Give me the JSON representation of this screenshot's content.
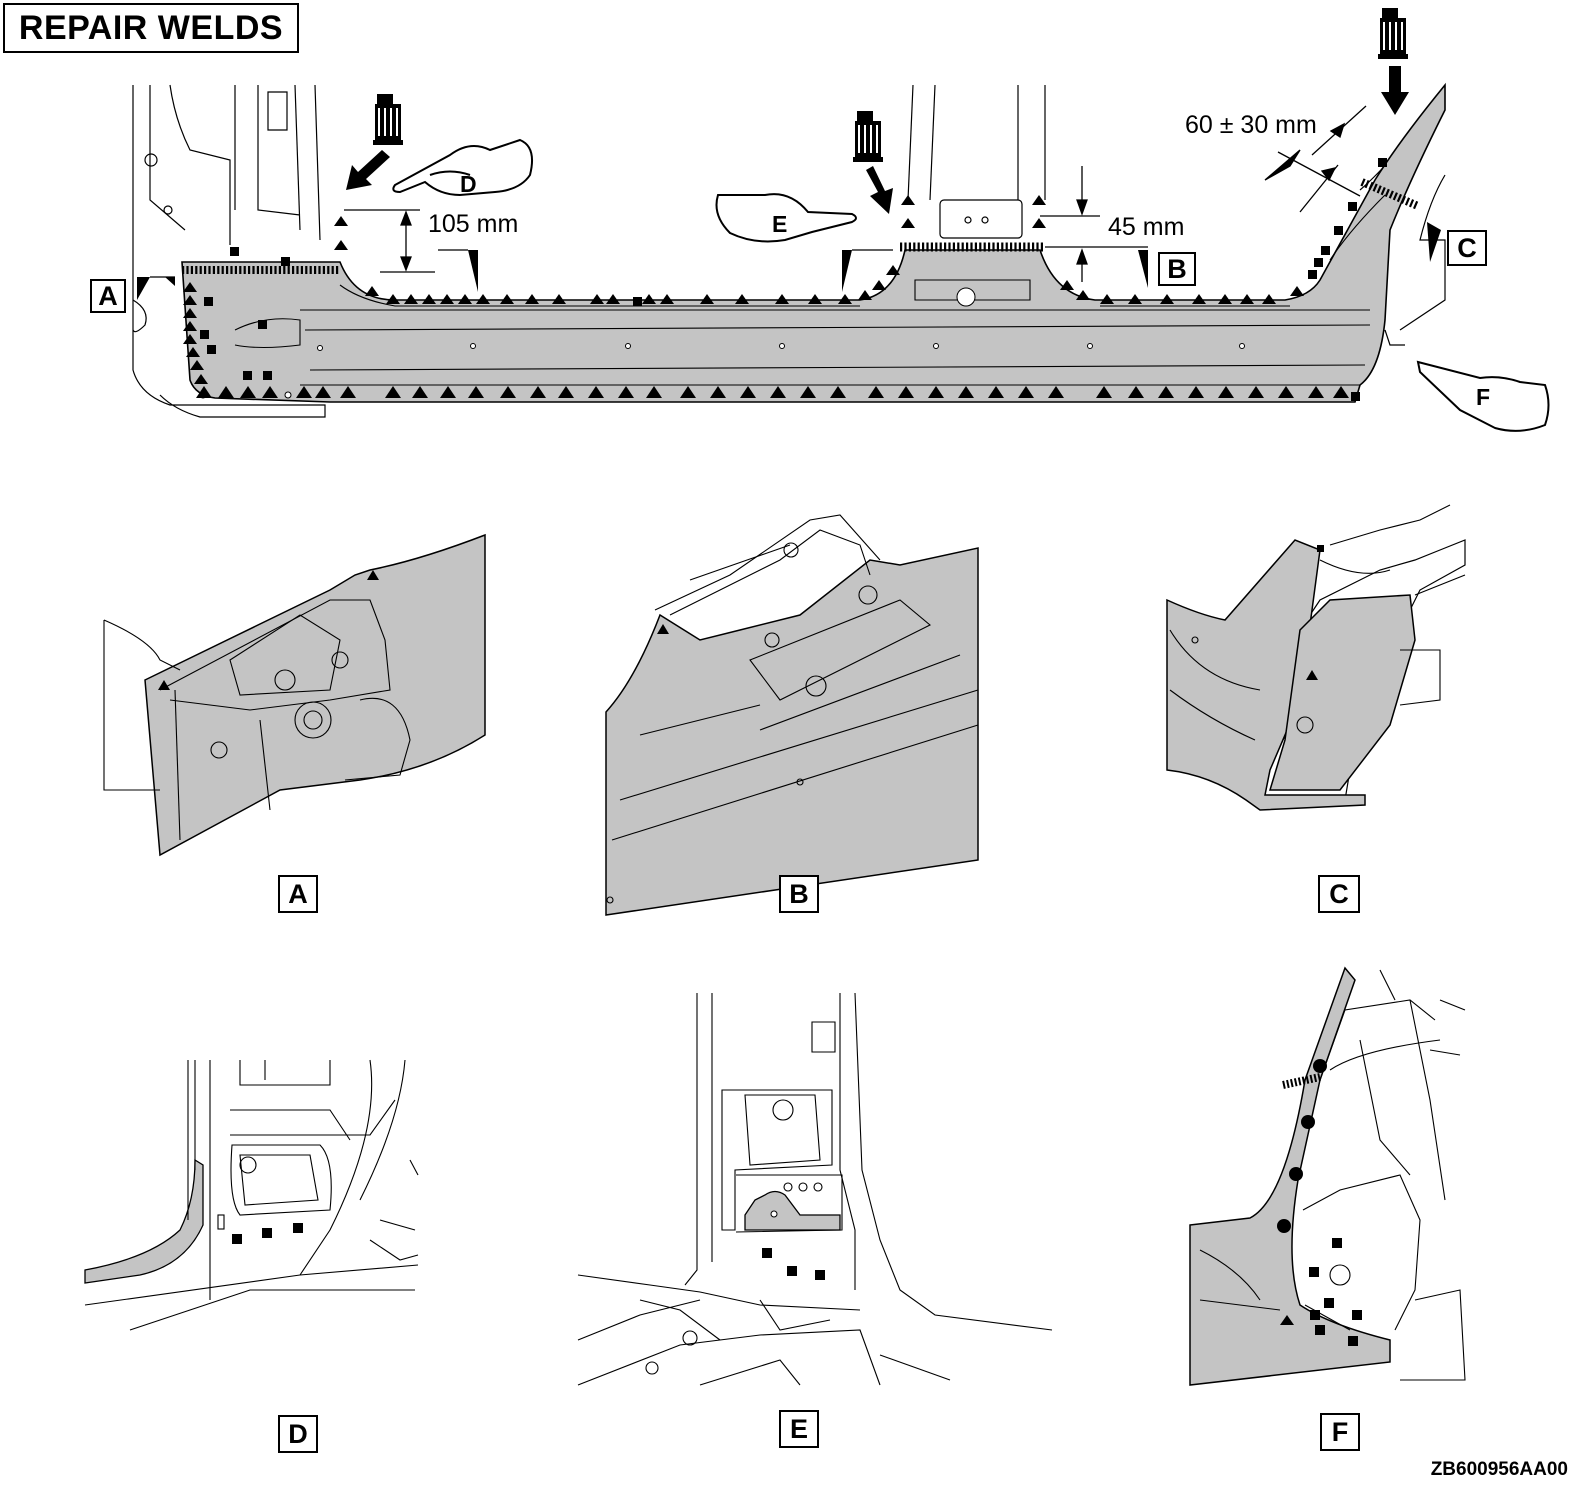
{
  "title": "REPAIR WELDS",
  "dimensions": {
    "rear": "60 ± 30 mm",
    "front": "105 mm",
    "center": "45 mm"
  },
  "section_labels": [
    "A",
    "B",
    "C"
  ],
  "view_labels": [
    "A",
    "B",
    "C",
    "D",
    "E",
    "F"
  ],
  "view_arrows": [
    "D",
    "E",
    "F"
  ],
  "drawing_code": "ZB600956AA00",
  "colors": {
    "panel_fill": "#c4c4c4",
    "line": "#000000",
    "background": "#ffffff"
  },
  "icons": [
    "sealer-gun-icon",
    "pointing-hand-icon",
    "weld-triangle-symbol",
    "weld-square-symbol",
    "weld-circle-symbol"
  ]
}
